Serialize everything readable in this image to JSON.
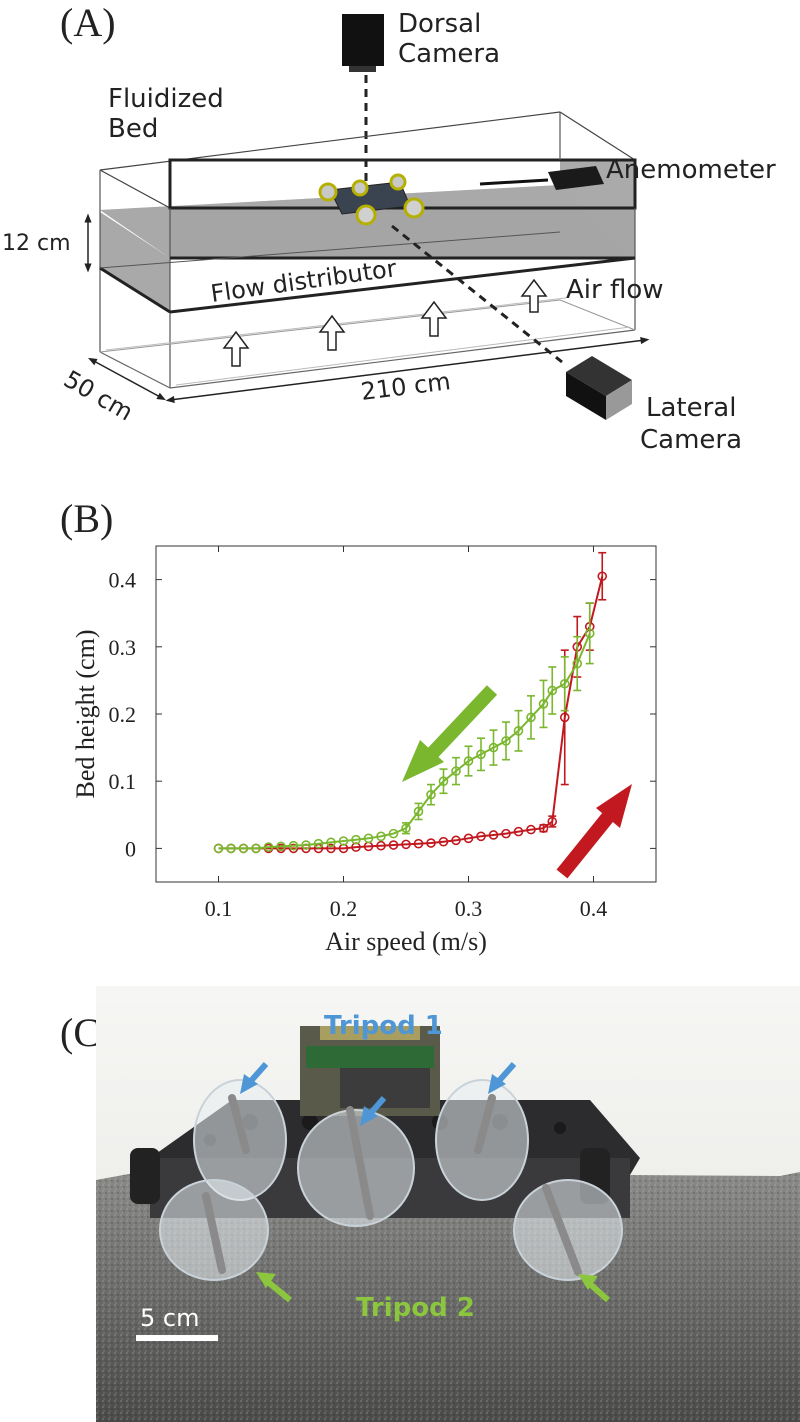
{
  "panel_a": {
    "label": "(A)",
    "dorsal_camera": [
      "Dorsal",
      "Camera"
    ],
    "fluidized_bed": [
      "Fluidized",
      "Bed"
    ],
    "anemometer": "Anemometer",
    "height_dim": "12 cm",
    "flow_distributor": "Flow distributor",
    "air_flow": "Air flow",
    "width_dim": "50 cm",
    "length_dim": "210 cm",
    "lateral_camera": [
      "Lateral",
      "Camera"
    ]
  },
  "panel_b": {
    "label": "(B)"
  },
  "chart_data": {
    "type": "line",
    "title": "",
    "xlabel": "Air speed (m/s)",
    "ylabel": "Bed height (cm)",
    "xlim": [
      0.05,
      0.45
    ],
    "ylim": [
      -0.05,
      0.45
    ],
    "xticks": [
      0.1,
      0.2,
      0.3,
      0.4
    ],
    "xtick_labels": [
      "0.1",
      "0.2",
      "0.3",
      "0.4"
    ],
    "yticks": [
      0,
      0.1,
      0.2,
      0.3,
      0.4
    ],
    "ytick_labels": [
      "0",
      "0.1",
      "0.2",
      "0.3",
      "0.4"
    ],
    "grid": false,
    "series": [
      {
        "color": "#c1191f",
        "direction": "increasing air speed",
        "x": [
          0.1,
          0.11,
          0.12,
          0.13,
          0.14,
          0.15,
          0.16,
          0.17,
          0.18,
          0.19,
          0.2,
          0.21,
          0.22,
          0.23,
          0.24,
          0.25,
          0.26,
          0.27,
          0.28,
          0.29,
          0.3,
          0.31,
          0.32,
          0.33,
          0.34,
          0.35,
          0.36,
          0.367,
          0.377,
          0.387,
          0.397,
          0.407
        ],
        "y": [
          0.0,
          0.0,
          0.0,
          0.0,
          0.0,
          0.0,
          0.0,
          0.0,
          0.0,
          0.0,
          0.0,
          0.002,
          0.003,
          0.004,
          0.005,
          0.006,
          0.007,
          0.008,
          0.01,
          0.012,
          0.015,
          0.018,
          0.02,
          0.022,
          0.025,
          0.028,
          0.03,
          0.04,
          0.195,
          0.3,
          0.33,
          0.405
        ],
        "err": [
          0,
          0,
          0,
          0,
          0,
          0,
          0,
          0,
          0,
          0,
          0,
          0,
          0,
          0,
          0,
          0,
          0,
          0,
          0,
          0,
          0,
          0,
          0,
          0,
          0,
          0,
          0.005,
          0.008,
          0.1,
          0.045,
          0.035,
          0.035
        ]
      },
      {
        "color": "#7ab72e",
        "direction": "decreasing air speed",
        "x": [
          0.1,
          0.11,
          0.12,
          0.13,
          0.14,
          0.15,
          0.16,
          0.17,
          0.18,
          0.19,
          0.2,
          0.21,
          0.22,
          0.23,
          0.24,
          0.25,
          0.26,
          0.27,
          0.28,
          0.29,
          0.3,
          0.31,
          0.32,
          0.33,
          0.34,
          0.35,
          0.36,
          0.367,
          0.377,
          0.387,
          0.397
        ],
        "y": [
          0.0,
          0.0,
          0.0,
          0.0,
          0.002,
          0.003,
          0.004,
          0.005,
          0.007,
          0.009,
          0.011,
          0.013,
          0.015,
          0.018,
          0.022,
          0.03,
          0.055,
          0.08,
          0.1,
          0.115,
          0.13,
          0.14,
          0.15,
          0.16,
          0.175,
          0.195,
          0.215,
          0.235,
          0.245,
          0.275,
          0.32
        ],
        "err": [
          0,
          0,
          0,
          0,
          0,
          0,
          0,
          0,
          0,
          0,
          0,
          0,
          0,
          0,
          0,
          0.008,
          0.012,
          0.015,
          0.018,
          0.02,
          0.022,
          0.024,
          0.026,
          0.028,
          0.03,
          0.032,
          0.035,
          0.035,
          0.04,
          0.04,
          0.045
        ]
      }
    ],
    "annotations": [
      {
        "kind": "arrow",
        "color": "#7ab72e",
        "meaning": "decreasing air speed"
      },
      {
        "kind": "arrow",
        "color": "#c1191f",
        "meaning": "increasing air speed"
      }
    ]
  },
  "panel_c": {
    "label": "(C)",
    "tripod1": "Tripod 1",
    "tripod2": "Tripod 2",
    "scale_bar": "5 cm",
    "tripod1_color": "#4f96d6",
    "tripod2_color": "#8cc63f"
  }
}
